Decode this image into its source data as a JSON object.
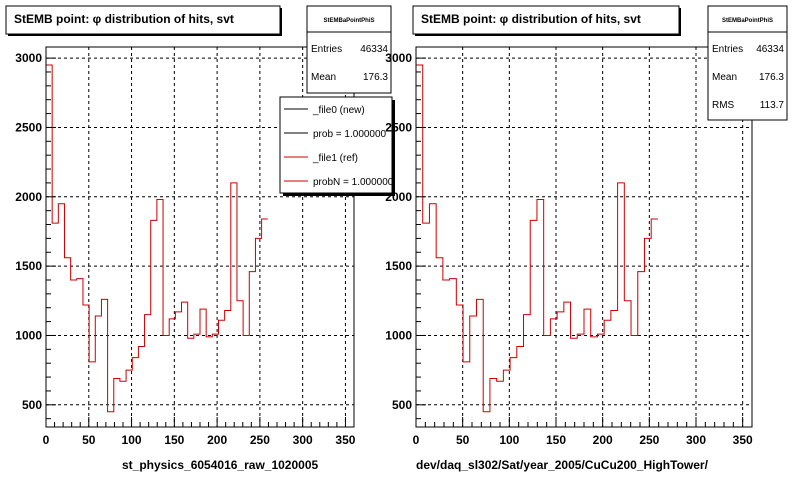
{
  "colors": {
    "line": "#cc0000",
    "frame": "#000000",
    "grid": "#000000",
    "background": "#ffffff"
  },
  "chart_data": [
    {
      "type": "histogram",
      "title": "StEMB point:  φ distribution of hits, svt",
      "xlabel": "st_physics_6054016_raw_1020005",
      "xlim": [
        0,
        360
      ],
      "ylim": [
        340,
        3080
      ],
      "x_ticks": [
        0,
        50,
        100,
        150,
        200,
        250,
        300,
        350
      ],
      "y_ticks": [
        500,
        1000,
        1500,
        2000,
        2500,
        3000
      ],
      "grid": true,
      "bin_width": 7.2,
      "series": [
        {
          "values": [
            2950,
            1810,
            1950,
            1560,
            1400,
            1410,
            1220,
            810,
            1140,
            1260,
            450,
            690,
            670,
            750,
            840,
            920,
            1150,
            1830,
            1980,
            1000,
            1120,
            1170,
            1240,
            980,
            1010,
            1190,
            990,
            1010,
            1110,
            1180,
            2100,
            1250,
            1000,
            1460,
            1700,
            1840
          ]
        }
      ],
      "stats_box": {
        "name": "StEMBaPointPhiS",
        "entries_label": "Entries",
        "entries": "46334",
        "mean_label": "Mean",
        "mean": "176.3"
      },
      "legend": {
        "position": "top-right",
        "entries": [
          {
            "label": "_file0 (new)",
            "color": "#000000"
          },
          {
            "label": "prob = 1.000000",
            "color": "#000000"
          },
          {
            "label": "_file1 (ref)",
            "color": "#cc0000"
          },
          {
            "label": "probN = 1.000000",
            "color": "#cc0000"
          }
        ]
      }
    },
    {
      "type": "histogram",
      "title": "StEMB point:  φ distribution of hits, svt",
      "xlabel": "dev/daq_sl302/Sat/year_2005/CuCu200_HighTower/",
      "xlim": [
        0,
        360
      ],
      "ylim": [
        340,
        3080
      ],
      "x_ticks": [
        0,
        50,
        100,
        150,
        200,
        250,
        300,
        350
      ],
      "y_ticks": [
        500,
        1000,
        1500,
        2000,
        2500,
        3000
      ],
      "grid": true,
      "bin_width": 7.2,
      "series": [
        {
          "values": [
            2950,
            1810,
            1950,
            1560,
            1400,
            1410,
            1220,
            810,
            1140,
            1260,
            450,
            690,
            670,
            750,
            840,
            920,
            1150,
            1830,
            1980,
            1000,
            1120,
            1170,
            1240,
            980,
            1010,
            1190,
            990,
            1010,
            1110,
            1180,
            2100,
            1250,
            1000,
            1460,
            1700,
            1840
          ]
        }
      ],
      "stats_box": {
        "name": "StEMBaPointPhiS",
        "entries_label": "Entries",
        "entries": "46334",
        "mean_label": "Mean",
        "mean": "176.3",
        "rms_label": "RMS",
        "rms": "113.7"
      }
    }
  ]
}
